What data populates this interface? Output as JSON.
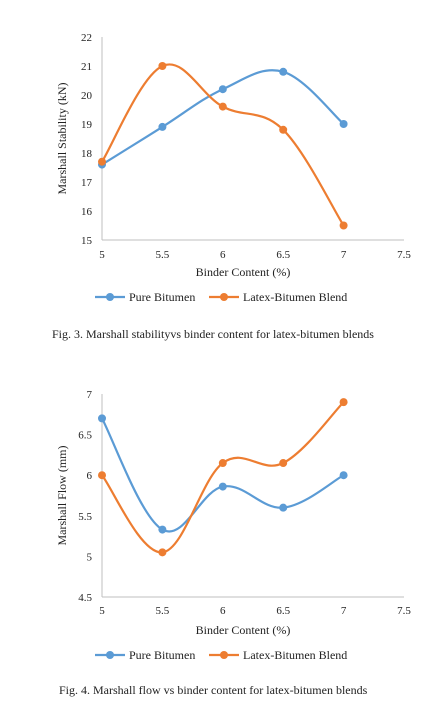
{
  "colors": {
    "pure": "#5b9bd5",
    "latex": "#ed7d31",
    "axis": "#bfbfbf"
  },
  "chart_data": [
    {
      "type": "line",
      "smooth": true,
      "xlabel": "Binder Content (%)",
      "ylabel": "Marshall Stability (kN)",
      "xlim": [
        5,
        7.5
      ],
      "ylim": [
        15,
        22
      ],
      "xticks": [
        "5",
        "5.5",
        "6",
        "6.5",
        "7",
        "7.5"
      ],
      "yticks": [
        "15",
        "16",
        "17",
        "18",
        "19",
        "20",
        "21",
        "22"
      ],
      "x": [
        5,
        5.5,
        6,
        6.5,
        7
      ],
      "series": [
        {
          "name": "Pure Bitumen",
          "values": [
            17.6,
            18.9,
            20.2,
            20.8,
            19.0
          ]
        },
        {
          "name": "Latex-Bitumen Blend",
          "values": [
            17.7,
            21.0,
            19.6,
            18.8,
            15.5
          ]
        }
      ],
      "legend": "bottom",
      "grid": false,
      "caption": "Fig. 3.  Marshall stabilityvs binder content for latex-bitumen blends"
    },
    {
      "type": "line",
      "smooth": true,
      "xlabel": "Binder Content (%)",
      "ylabel": "Marshall Flow (mm)",
      "xlim": [
        5,
        7.5
      ],
      "ylim": [
        4.5,
        7
      ],
      "xticks": [
        "5",
        "5.5",
        "6",
        "6.5",
        "7",
        "7.5"
      ],
      "yticks": [
        "4.5",
        "5",
        "5.5",
        "6",
        "6.5",
        "7"
      ],
      "x": [
        5,
        5.5,
        6,
        6.5,
        7
      ],
      "series": [
        {
          "name": "Pure Bitumen",
          "values": [
            6.7,
            5.33,
            5.86,
            5.6,
            6.0
          ]
        },
        {
          "name": "Latex-Bitumen Blend",
          "values": [
            6.0,
            5.05,
            6.15,
            6.15,
            6.9
          ]
        }
      ],
      "legend": "bottom",
      "grid": false,
      "caption": "Fig. 4.  Marshall flow vs binder content for latex-bitumen blends"
    }
  ]
}
